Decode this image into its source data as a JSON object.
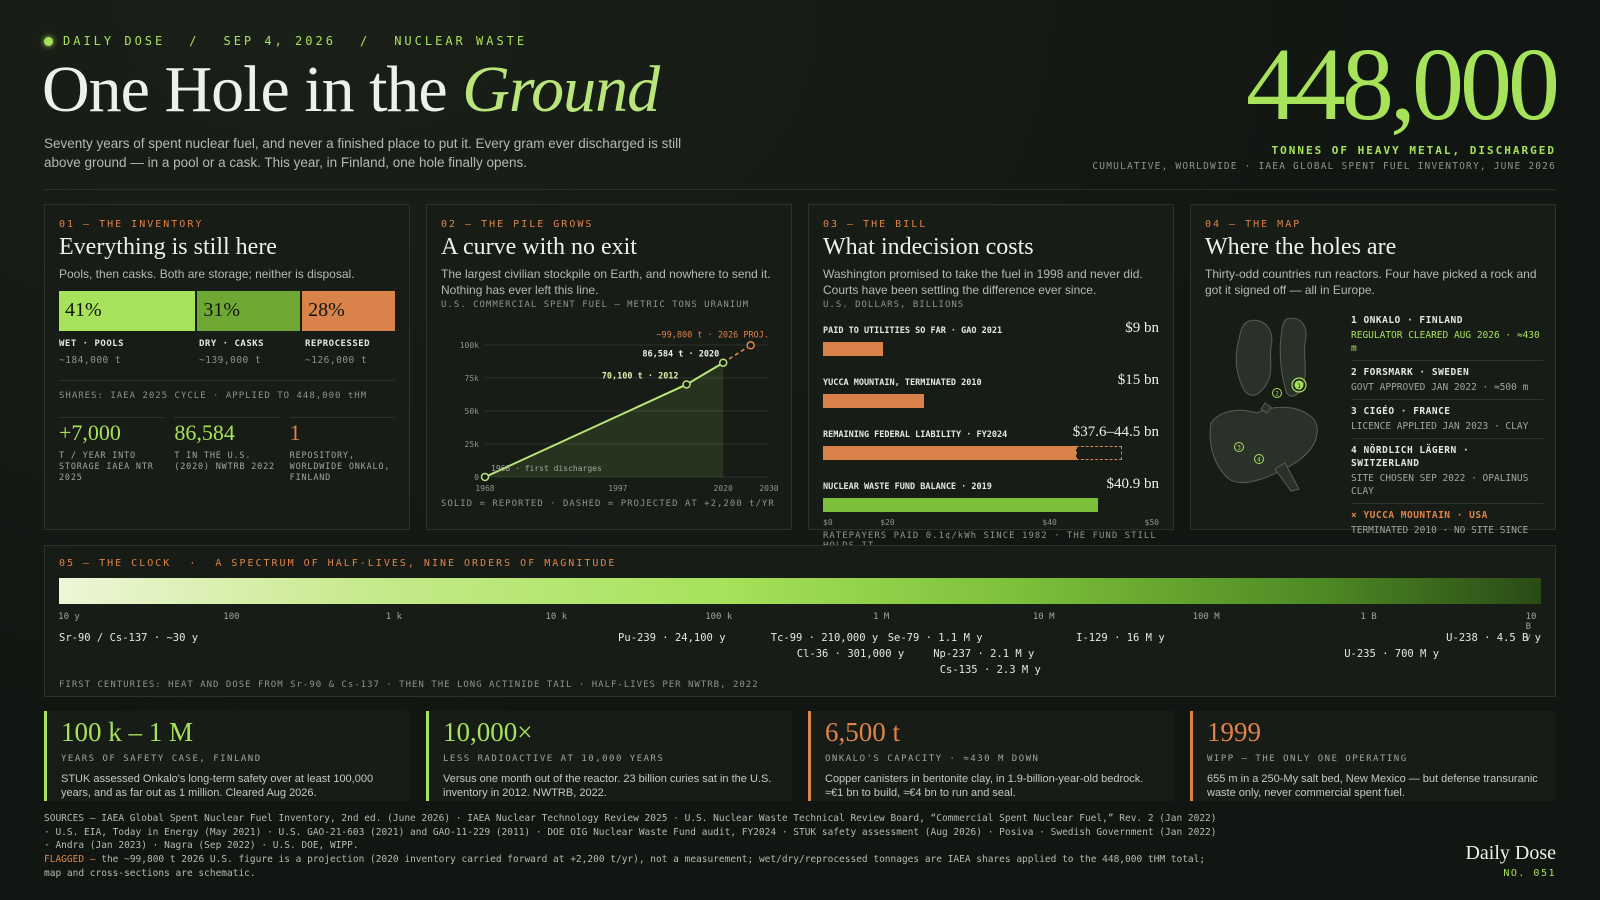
{
  "header": {
    "kicker": [
      "DAILY DOSE",
      "SEP 4, 2026",
      "NUCLEAR WASTE"
    ],
    "title_main": "One Hole in the",
    "title_em": "Ground",
    "lede": "Seventy years of spent nuclear fuel, and never a finished place to put it. Every gram ever discharged is still above ground — in a pool or a cask. This year, in Finland, one hole finally opens.",
    "big_number": "448,000",
    "big_caption": "TONNES OF HEAVY METAL, DISCHARGED",
    "big_source": "CUMULATIVE, WORLDWIDE · IAEA GLOBAL SPENT FUEL INVENTORY, JUNE 2026"
  },
  "panel1": {
    "tag": "01 — THE INVENTORY",
    "head": "Everything is still here",
    "desc": "Pools, then casks. Both are storage; neither is disposal.",
    "bars": [
      {
        "pct": "41%",
        "label": "WET · POOLS",
        "sub": "~184,000 t",
        "color": "#a6e25a",
        "share": 41
      },
      {
        "pct": "31%",
        "label": "DRY · CASKS",
        "sub": "~139,000 t",
        "color": "#6da834",
        "share": 31
      },
      {
        "pct": "28%",
        "label": "REPROCESSED",
        "sub": "~126,000 t",
        "color": "#d9834a",
        "share": 28
      }
    ],
    "shares": "SHARES: IAEA 2025 CYCLE · APPLIED TO 448,000 tHM",
    "stats": [
      {
        "value": "+7,000",
        "label": "T / YEAR INTO STORAGE IAEA NTR 2025"
      },
      {
        "value": "86,584",
        "label": "T IN THE U.S. (2020) NWTRB 2022"
      },
      {
        "value": "1",
        "label": "REPOSITORY, WORLDWIDE ONKALO, FINLAND"
      }
    ]
  },
  "panel2": {
    "tag": "02 — THE PILE GROWS",
    "head": "A curve with no exit",
    "desc": "The largest civilian stockpile on Earth, and nowhere to send it. Nothing has ever left this line.",
    "chart_label": "U.S. COMMERCIAL SPENT FUEL — METRIC TONS URANIUM",
    "foot": "SOLID = REPORTED · DASHED = PROJECTED AT +2,200 t/YR"
  },
  "chart_data": {
    "type": "line",
    "title": "U.S. COMMERCIAL SPENT FUEL — METRIC TONS URANIUM",
    "x_ticks": [
      "1968",
      "1997",
      "2020",
      "2030"
    ],
    "y_ticks": [
      "0",
      "25k",
      "50k",
      "75k",
      "100k"
    ],
    "ylim": [
      0,
      100000
    ],
    "xlim": [
      1968,
      2030
    ],
    "series": [
      {
        "values": [
          {
            "x": 1968,
            "y": 0
          },
          {
            "x": 2012,
            "y": 70100
          },
          {
            "x": 2020,
            "y": 86584
          }
        ]
      },
      {
        "values": [
          {
            "x": 2020,
            "y": 86584
          },
          {
            "x": 2026,
            "y": 99800
          }
        ]
      }
    ],
    "annotations": [
      "1968 · first discharges",
      "70,100 t · 2012",
      "86,584 t · 2020",
      "~99,800 t · 2026 PROJ."
    ]
  },
  "panel3": {
    "tag": "03 — THE BILL",
    "head": "What indecision costs",
    "desc": "Washington promised to take the fuel in 1998 and never did. Courts have been settling the difference ever since.",
    "unit": "U.S. DOLLARS, BILLIONS",
    "rows": [
      {
        "label": "PAID TO UTILITIES SO FAR · GAO 2021",
        "value": "$9 bn",
        "amount": 9,
        "color": "#d9834a"
      },
      {
        "label": "YUCCA MOUNTAIN, TERMINATED 2010",
        "value": "$15 bn",
        "amount": 15,
        "color": "#d9834a"
      },
      {
        "label": "REMAINING FEDERAL LIABILITY · FY2024",
        "value": "$37.6–44.5 bn",
        "amount": 37.6,
        "amount_high": 44.5,
        "color": "#d9834a"
      },
      {
        "label": "NUCLEAR WASTE FUND BALANCE · 2019",
        "value": "$40.9 bn",
        "amount": 40.9,
        "color": "#7cbf3a"
      }
    ],
    "axis": [
      "$0",
      "$20",
      "$40",
      "$50"
    ],
    "foot": "RATEPAYERS PAID 0.1¢/kWh SINCE 1982 · THE FUND STILL HOLDS IT"
  },
  "panel4": {
    "tag": "04 — THE MAP",
    "head": "Where the holes are",
    "desc": "Thirty-odd countries run reactors. Four have picked a rock and got it signed off — all in Europe.",
    "sites": [
      {
        "name": "1  ONKALO · FINLAND",
        "detail": "REGULATOR CLEARED AUG 2026 · ≈430 m",
        "green": true
      },
      {
        "name": "2  FORSMARK · SWEDEN",
        "detail": "GOVT APPROVED JAN 2022 · ≈500 m",
        "green": false
      },
      {
        "name": "3  CIGÉO · FRANCE",
        "detail": "LICENCE APPLIED JAN 2023 · CLAY",
        "green": false
      },
      {
        "name": "4  NÖRDLICH LÄGERN · SWITZERLAND",
        "detail": "SITE CHOSEN SEP 2022 · OPALINUS CLAY",
        "green": false
      }
    ],
    "cancelled": {
      "name": "×  YUCCA MOUNTAIN · USA",
      "detail": "TERMINATED 2010 · NO SITE SINCE"
    },
    "markers": [
      "1",
      "2",
      "3",
      "4"
    ]
  },
  "clock": {
    "tag": "05 — THE CLOCK",
    "subtitle": "A SPECTRUM OF HALF-LIVES, NINE ORDERS OF MAGNITUDE",
    "ticks": [
      "10 y",
      "100",
      "1 k",
      "10 k",
      "100 k",
      "1 M",
      "10 M",
      "100 M",
      "1 B",
      "10 B y"
    ],
    "isotopes": [
      {
        "label": "Sr-90 / Cs-137 · ~30 y",
        "row": 0,
        "log10_years": 1.48
      },
      {
        "label": "Pu-239 · 24,100 y",
        "row": 0,
        "log10_years": 4.38
      },
      {
        "label": "Tc-99 · 210,000 y",
        "row": 0,
        "log10_years": 5.32
      },
      {
        "label": "Cl-36 · 301,000 y",
        "row": 1,
        "log10_years": 5.48
      },
      {
        "label": "Se-79 · 1.1 M y",
        "row": 0,
        "log10_years": 6.04
      },
      {
        "label": "Np-237 · 2.1 M y",
        "row": 1,
        "log10_years": 6.32
      },
      {
        "label": "Cs-135 · 2.3 M y",
        "row": 2,
        "log10_years": 6.36
      },
      {
        "label": "I-129 · 16 M y",
        "row": 0,
        "log10_years": 7.2
      },
      {
        "label": "U-235 · 700 M y",
        "row": 1,
        "log10_years": 8.85
      },
      {
        "label": "U-238 · 4.5 B y",
        "row": 0,
        "log10_years": 9.65
      }
    ],
    "foot": "FIRST CENTURIES: HEAT AND DOSE FROM Sr-90 & Cs-137 · THEN THE LONG ACTINIDE TAIL · HALF-LIVES PER NWTRB, 2022"
  },
  "cards": [
    {
      "value": "100 k – 1 M",
      "key": "YEARS OF SAFETY CASE, FINLAND",
      "desc": "STUK assessed Onkalo's long-term safety over at least 100,000 years, and as far out as 1 million. Cleared Aug 2026.",
      "accent": "green"
    },
    {
      "value": "10,000×",
      "key": "LESS RADIOACTIVE AT 10,000 YEARS",
      "desc": "Versus one month out of the reactor. 23 billion curies sat in the U.S. inventory in 2012. NWTRB, 2022.",
      "accent": "green"
    },
    {
      "value": "6,500 t",
      "key": "ONKALO'S CAPACITY · ≈430 M DOWN",
      "desc": "Copper canisters in bentonite clay, in 1.9-billion-year-old bedrock. ≈€1 bn to build, ≈€4 bn to run and seal.",
      "accent": "orange"
    },
    {
      "value": "1999",
      "key": "WIPP — THE ONLY ONE OPERATING",
      "desc": "655 m in a 250-My salt bed, New Mexico — but defense transuranic waste only, never commercial spent fuel.",
      "accent": "orange"
    }
  ],
  "footer": {
    "sources": "SOURCES — IAEA Global Spent Nuclear Fuel Inventory, 2nd ed. (June 2026) · IAEA Nuclear Technology Review 2025 · U.S. Nuclear Waste Technical Review Board, “Commercial Spent Nuclear Fuel,” Rev. 2 (Jan 2022) · U.S. EIA, Today in Energy (May 2021) · U.S. GAO-21-603 (2021) and GAO-11-229 (2011) · DOE OIG Nuclear Waste Fund audit, FY2024 · STUK safety assessment (Aug 2026) · Posiva · Swedish Government (Jan 2022) · Andra (Jan 2023) · Nagra (Sep 2022) · U.S. DOE, WIPP.",
    "flagged_label": "FLAGGED —",
    "flagged": "the ~99,800 t 2026 U.S. figure is a projection (2020 inventory carried forward at +2,200 t/yr), not a measurement; wet/dry/reprocessed tonnages are IAEA shares applied to the 448,000 tHM total; map and cross-sections are schematic.",
    "brand": "Daily Dose",
    "issue": "NO. 051"
  }
}
